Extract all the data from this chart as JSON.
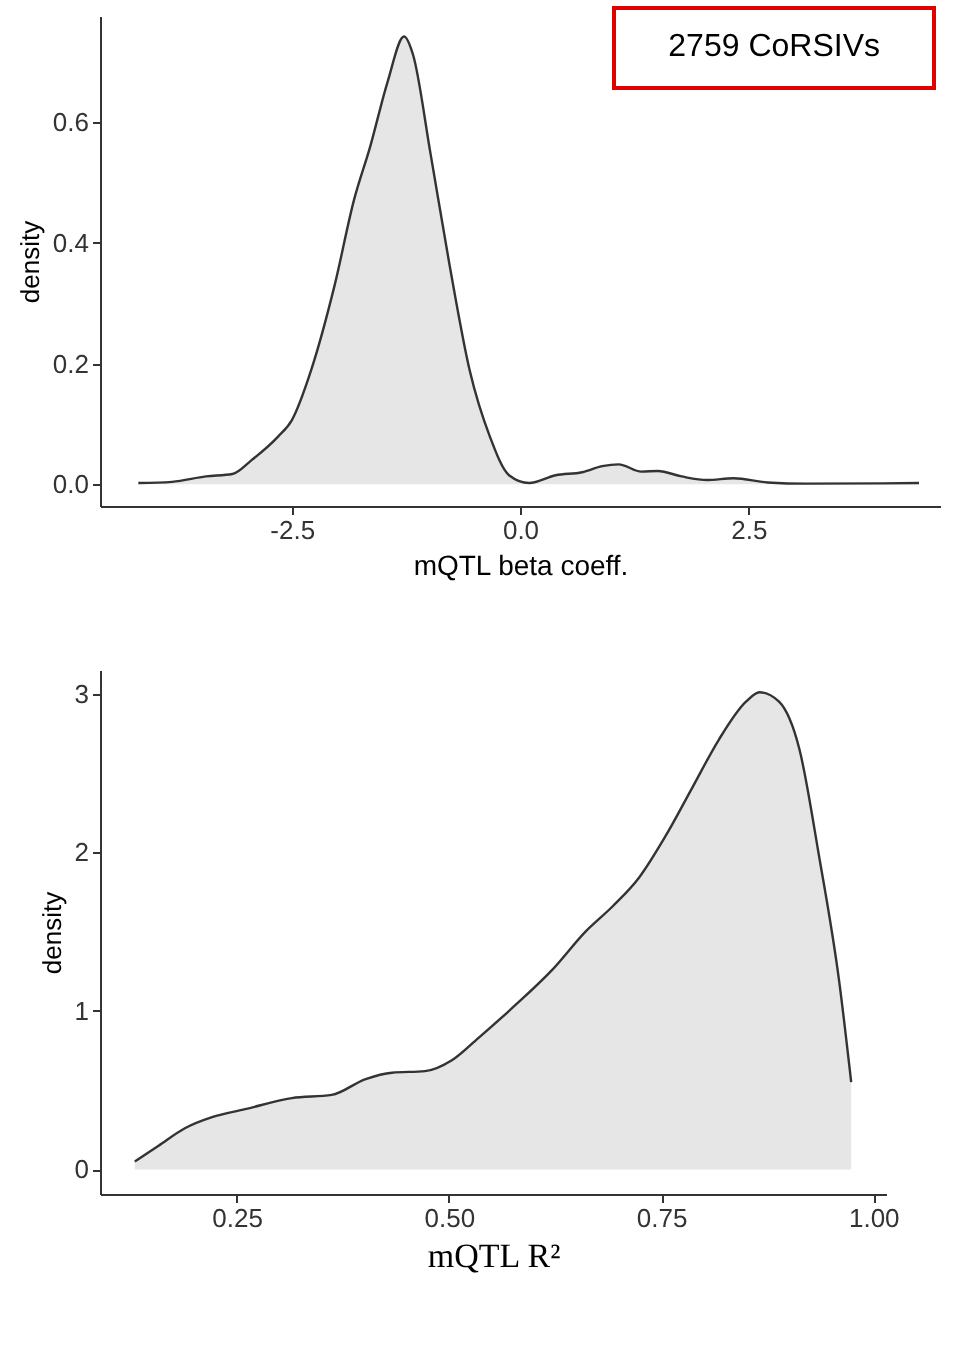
{
  "chart_data": [
    {
      "type": "area",
      "xlabel": "mQTL beta coeff.",
      "ylabel": "density",
      "annotations": [
        "2759 CoRSIVs"
      ],
      "xlim": [
        -4.6,
        4.6
      ],
      "ylim": [
        -0.036,
        0.776
      ],
      "xticks": [
        {
          "value": -2.5,
          "label": "-2.5"
        },
        {
          "value": 0,
          "label": "0.0"
        },
        {
          "value": 2.5,
          "label": "2.5"
        }
      ],
      "yticks": [
        {
          "value": 0,
          "label": "0.0"
        },
        {
          "value": 0.2,
          "label": "0.2"
        },
        {
          "value": 0.4,
          "label": "0.4"
        },
        {
          "value": 0.6,
          "label": "0.6"
        }
      ],
      "series": [
        {
          "color": "#dcdcdc",
          "x": [
            -4.18,
            -3.81,
            -3.44,
            -3.15,
            -2.94,
            -2.65,
            -2.5,
            -2.29,
            -2.03,
            -1.82,
            -1.64,
            -1.45,
            -1.27,
            -1.17,
            -0.98,
            -0.77,
            -0.55,
            -0.33,
            -0.12,
            0.1,
            0.39,
            0.68,
            0.9,
            1.08,
            1.33,
            1.51,
            1.77,
            2.05,
            2.34,
            2.71,
            3.14,
            4.37
          ],
          "values": [
            0.002,
            0.004,
            0.013,
            0.017,
            0.04,
            0.079,
            0.106,
            0.188,
            0.33,
            0.47,
            0.56,
            0.667,
            0.742,
            0.711,
            0.548,
            0.362,
            0.188,
            0.079,
            0.015,
            0.002,
            0.015,
            0.02,
            0.03,
            0.033,
            0.021,
            0.022,
            0.013,
            0.007,
            0.01,
            0.003,
            0.001,
            0.002
          ]
        }
      ]
    },
    {
      "type": "area",
      "xlabel": "mQTL R²",
      "ylabel": "density",
      "xlim": [
        0.089,
        1.015
      ],
      "ylim": [
        -0.155,
        3.15
      ],
      "xticks": [
        0.25,
        {
          "value": 0.5,
          "label": "0.50"
        },
        0.75,
        {
          "value": 1,
          "label": "1.00"
        }
      ],
      "yticks": [
        0,
        1,
        2,
        3
      ],
      "series": [
        {
          "color": "#dcdcdc",
          "x": [
            0.13,
            0.158,
            0.189,
            0.221,
            0.26,
            0.315,
            0.362,
            0.402,
            0.433,
            0.472,
            0.504,
            0.535,
            0.575,
            0.622,
            0.661,
            0.693,
            0.724,
            0.755,
            0.787,
            0.818,
            0.85,
            0.866,
            0.889,
            0.913,
            0.936,
            0.96,
            0.974
          ],
          "values": [
            0.05,
            0.15,
            0.26,
            0.33,
            0.38,
            0.45,
            0.47,
            0.57,
            0.61,
            0.62,
            0.69,
            0.83,
            1.02,
            1.26,
            1.5,
            1.66,
            1.84,
            2.1,
            2.41,
            2.71,
            2.95,
            3.01,
            2.95,
            2.65,
            1.98,
            1.18,
            0.55
          ]
        }
      ]
    }
  ]
}
